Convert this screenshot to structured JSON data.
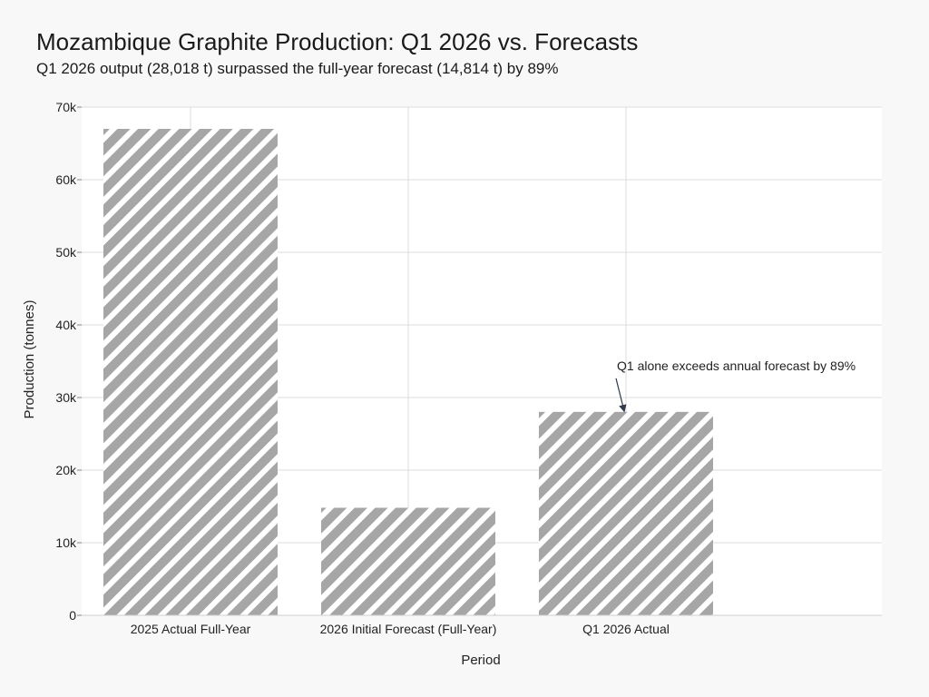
{
  "chart_data": {
    "type": "bar",
    "title": "Mozambique Graphite Production: Q1 2026 vs. Forecasts",
    "subtitle": "Q1 2026 output (28,018 t) surpassed the full-year forecast (14,814 t) by 89%",
    "xlabel": "Period",
    "ylabel": "Production (tonnes)",
    "categories": [
      "2025 Actual Full-Year",
      "2026 Initial Forecast (Full-Year)",
      "Q1 2026 Actual"
    ],
    "values": [
      67000,
      14814,
      28018
    ],
    "ylim": [
      0,
      70000
    ],
    "yticks": [
      0,
      10000,
      20000,
      30000,
      40000,
      50000,
      60000,
      70000
    ],
    "ytick_labels": [
      "0",
      "10k",
      "20k",
      "30k",
      "40k",
      "50k",
      "60k",
      "70k"
    ],
    "bar_color": "#a6a6a6",
    "bar_pattern": "diagonal-stripes",
    "grid": true,
    "annotation": {
      "text": "Q1 alone exceeds annual forecast by 89%",
      "target_category": "Q1 2026 Actual",
      "target_value": 28018
    }
  }
}
